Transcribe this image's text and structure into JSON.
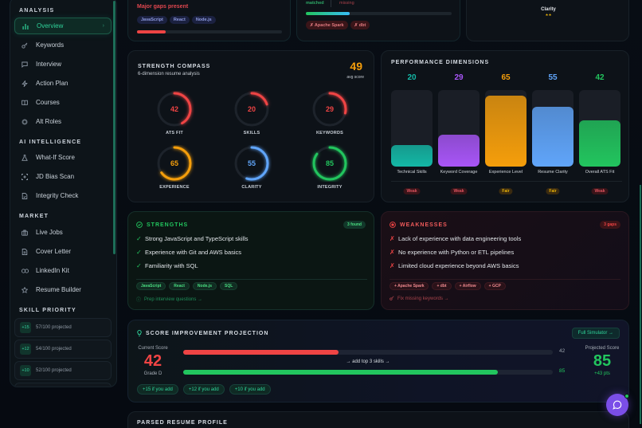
{
  "sidebar": {
    "sections": {
      "analysis": "ANALYSIS",
      "ai": "AI INTELLIGENCE",
      "market": "MARKET",
      "skill_priority": "SKILL PRIORITY"
    },
    "items": [
      {
        "label": "Overview",
        "icon": "bar-chart-icon",
        "active": true
      },
      {
        "label": "Keywords",
        "icon": "key-icon"
      },
      {
        "label": "Interview",
        "icon": "message-square-icon"
      },
      {
        "label": "Action Plan",
        "icon": "zap-icon"
      },
      {
        "label": "Courses",
        "icon": "book-open-icon"
      },
      {
        "label": "Alt Roles",
        "icon": "target-icon"
      },
      {
        "label": "What-If Score",
        "icon": "flask-icon"
      },
      {
        "label": "JD Bias Scan",
        "icon": "scan-icon"
      },
      {
        "label": "Integrity Check",
        "icon": "file-check-icon"
      },
      {
        "label": "Live Jobs",
        "icon": "briefcase-icon"
      },
      {
        "label": "Cover Letter",
        "icon": "file-text-icon"
      },
      {
        "label": "LinkedIn Kit",
        "icon": "link-icon"
      },
      {
        "label": "Resume Builder",
        "icon": "star-icon"
      }
    ],
    "skill_priority": [
      {
        "badge": "+15",
        "text": "57/100 projected"
      },
      {
        "badge": "+12",
        "text": "54/100 projected"
      },
      {
        "badge": "+10",
        "text": "52/100 projected"
      }
    ]
  },
  "top_cards": {
    "left": {
      "status": "Major gaps present",
      "tags": [
        "JavaScript",
        "React",
        "Node.js"
      ],
      "progress_pct": 20
    },
    "middle": {
      "matched_label": "matched",
      "missing_label": "missing",
      "progress_pct": 30,
      "missing_tags": [
        "✗ Apache Spark",
        "✗ dbt"
      ]
    },
    "right": {
      "label": "Clarity",
      "stars": "★★"
    }
  },
  "strength_compass": {
    "title": "STRENGTH COMPASS",
    "subtitle": "6-dimension resume analysis",
    "avg_score": "49",
    "avg_label": "avg score",
    "gauges": [
      {
        "label": "ATS FIT",
        "value": 42,
        "color": "#ef4444"
      },
      {
        "label": "SKILLS",
        "value": 20,
        "color": "#ef4444"
      },
      {
        "label": "KEYWORDS",
        "value": 29,
        "color": "#ef4444"
      },
      {
        "label": "EXPERIENCE",
        "value": 65,
        "color": "#f59e0b"
      },
      {
        "label": "CLARITY",
        "value": 55,
        "color": "#60a5fa"
      },
      {
        "label": "INTEGRITY",
        "value": 85,
        "color": "#22c55e"
      }
    ]
  },
  "performance": {
    "title": "PERFORMANCE DIMENSIONS",
    "bars": [
      {
        "name": "Technical Skills",
        "value": 20,
        "color": "#14b8a6",
        "rating": "Weak"
      },
      {
        "name": "Keyword Coverage",
        "value": 29,
        "color": "#a855f7",
        "rating": "Weak"
      },
      {
        "name": "Experience Level",
        "value": 65,
        "color": "#f59e0b",
        "rating": "Fair"
      },
      {
        "name": "Resume Clarity",
        "value": 55,
        "color": "#60a5fa",
        "rating": "Fair"
      },
      {
        "name": "Overall ATS Fit",
        "value": 42,
        "color": "#22c55e",
        "rating": "Weak"
      }
    ]
  },
  "strengths": {
    "title": "STRENGTHS",
    "count": "3 found",
    "items": [
      "Strong JavaScript and TypeScript skills",
      "Experience with Git and AWS basics",
      "Familiarity with SQL"
    ],
    "tags": [
      "JavaScript",
      "React",
      "Node.js",
      "SQL"
    ],
    "link": "Prep interview questions →"
  },
  "weaknesses": {
    "title": "WEAKNESSES",
    "count": "3 gaps",
    "items": [
      "Lack of experience with data engineering tools",
      "No experience with Python or ETL pipelines",
      "Limited cloud experience beyond AWS basics"
    ],
    "tags": [
      "+ Apache Spark",
      "+ dbt",
      "+ Airflow",
      "+ GCP"
    ],
    "link": "Fix missing keywords →"
  },
  "projection": {
    "title": "SCORE IMPROVEMENT PROJECTION",
    "simulator_button": "Full Simulator →",
    "current_label": "Current Score",
    "current_score": "42",
    "grade": "Grade D",
    "current_bar_value": "42",
    "hint": "→ add top 3 skills →",
    "projected_bar_value": "85",
    "projected_label": "Projected Score",
    "projected_score": "85",
    "delta": "+43 pts",
    "chips": [
      "+15 if you add",
      "+12 if you add",
      "+10 if you add"
    ]
  },
  "parsed_profile": {
    "title": "PARSED RESUME PROFILE"
  }
}
